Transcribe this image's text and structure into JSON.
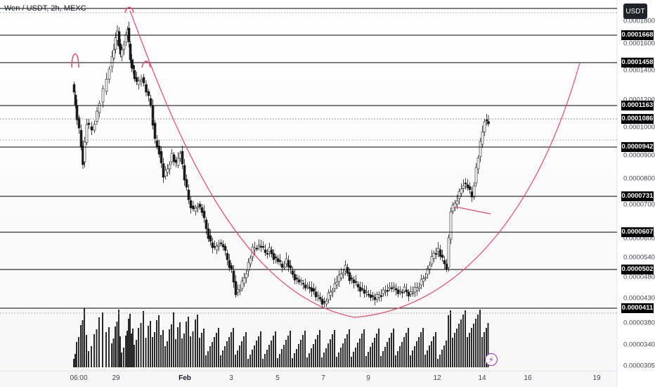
{
  "header": {
    "symbol": "Wen / USDT, 2h, MEXC"
  },
  "currency_button": {
    "label": "USDT"
  },
  "price_axis": {
    "ticks": [
      "0.0001800",
      "0.0001600",
      "0.0001400",
      "0.0001200",
      "0.0001000",
      "0.0000900",
      "0.0000800",
      "0.0000700",
      "0.0000600",
      "0.0000540",
      "0.0000480",
      "0.0000430",
      "0.0000380",
      "0.0000340",
      "0.0000305"
    ],
    "levels": [
      "0.0001668",
      "0.0001458",
      "0.0001163",
      "0.0001086",
      "0.0000942",
      "0.0000731",
      "0.0000607",
      "0.0000502",
      "0.0000411"
    ]
  },
  "time_axis": {
    "labels": [
      {
        "text": "06:00",
        "bold": false
      },
      {
        "text": "29",
        "bold": false
      },
      {
        "text": "Feb",
        "bold": true
      },
      {
        "text": "3",
        "bold": false
      },
      {
        "text": "5",
        "bold": false
      },
      {
        "text": "7",
        "bold": false
      },
      {
        "text": "9",
        "bold": false
      },
      {
        "text": "12",
        "bold": false
      },
      {
        "text": "14",
        "bold": false
      },
      {
        "text": "16",
        "bold": false
      },
      {
        "text": "19",
        "bold": false
      }
    ]
  },
  "colors": {
    "up": "#1a1a1a",
    "down": "#1a1a1a",
    "drawing": "#e84a6f",
    "level_line": "#000000",
    "label_bg": "#000000",
    "alert": "#9c27b0"
  },
  "icons": {
    "alert": "lightning-icon"
  }
}
